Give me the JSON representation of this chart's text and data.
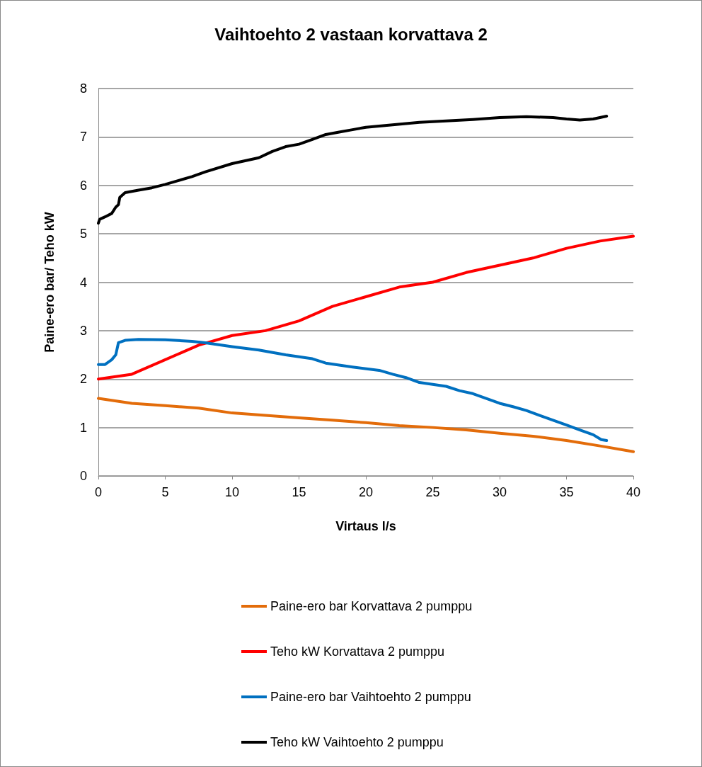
{
  "chart_data": {
    "type": "line",
    "title": "Vaihtoehto 2 vastaan korvattava 2",
    "xlabel": "Virtaus l/s",
    "ylabel": "Paine-ero bar/ Teho kW",
    "xlim": [
      0,
      40
    ],
    "xticks": [
      0,
      5,
      10,
      15,
      20,
      25,
      30,
      35,
      40
    ],
    "ylim": [
      0,
      8
    ],
    "yticks": [
      0,
      1,
      2,
      3,
      4,
      5,
      6,
      7,
      8
    ],
    "grid": "y",
    "legend": "bottom",
    "marker": "none",
    "line_style": "solid",
    "series": [
      {
        "name": "Paine-ero bar Korvattava 2 pumppu",
        "color": "#e36c0a",
        "x": [
          0,
          2.5,
          5,
          7.5,
          10,
          12.5,
          15,
          17.5,
          20,
          22.5,
          25,
          27.5,
          30,
          32.5,
          35,
          37.5,
          40
        ],
        "values": [
          1.6,
          1.5,
          1.45,
          1.4,
          1.3,
          1.25,
          1.2,
          1.15,
          1.1,
          1.04,
          1.0,
          0.95,
          0.88,
          0.82,
          0.73,
          0.62,
          0.5
        ]
      },
      {
        "name": "Teho kW Korvattava 2 pumppu",
        "color": "#ff0000",
        "x": [
          0,
          2.5,
          5,
          7.5,
          10,
          12.5,
          15,
          17.5,
          20,
          22.5,
          25,
          27.5,
          30,
          32.5,
          35,
          37.5,
          40
        ],
        "values": [
          2.0,
          2.1,
          2.4,
          2.7,
          2.9,
          3.0,
          3.2,
          3.5,
          3.7,
          3.9,
          4.0,
          4.2,
          4.35,
          4.5,
          4.7,
          4.85,
          4.95
        ]
      },
      {
        "name": "Paine-ero bar Vaihtoehto 2 pumppu",
        "color": "#0070c0",
        "x": [
          0,
          0.5,
          1,
          1.3,
          1.5,
          2,
          3,
          5,
          7,
          8,
          10,
          12,
          14,
          16,
          17,
          19,
          21,
          22,
          23,
          24,
          26,
          27,
          28,
          29,
          30,
          31,
          32,
          33,
          34,
          35,
          36,
          37,
          37.6,
          38
        ],
        "values": [
          2.3,
          2.3,
          2.4,
          2.5,
          2.75,
          2.8,
          2.82,
          2.81,
          2.78,
          2.75,
          2.67,
          2.6,
          2.5,
          2.42,
          2.33,
          2.25,
          2.18,
          2.1,
          2.03,
          1.93,
          1.85,
          1.76,
          1.7,
          1.6,
          1.5,
          1.43,
          1.35,
          1.25,
          1.15,
          1.05,
          0.95,
          0.85,
          0.75,
          0.73
        ]
      },
      {
        "name": "Teho kW Vaihtoehto 2 pumppu",
        "color": "#000000",
        "x": [
          0,
          0.1,
          0.5,
          1,
          1.3,
          1.5,
          1.6,
          2,
          3,
          4,
          5,
          6,
          7,
          8,
          10,
          12,
          13,
          14,
          15,
          16,
          17,
          18,
          19,
          20,
          22,
          24,
          26,
          28,
          30,
          32,
          34,
          35,
          36,
          37,
          37.5,
          38
        ],
        "values": [
          5.22,
          5.3,
          5.35,
          5.42,
          5.55,
          5.6,
          5.75,
          5.85,
          5.9,
          5.95,
          6.02,
          6.1,
          6.18,
          6.28,
          6.45,
          6.57,
          6.7,
          6.8,
          6.85,
          6.95,
          7.05,
          7.1,
          7.15,
          7.2,
          7.25,
          7.3,
          7.33,
          7.36,
          7.4,
          7.42,
          7.4,
          7.37,
          7.35,
          7.37,
          7.4,
          7.43
        ]
      }
    ]
  }
}
